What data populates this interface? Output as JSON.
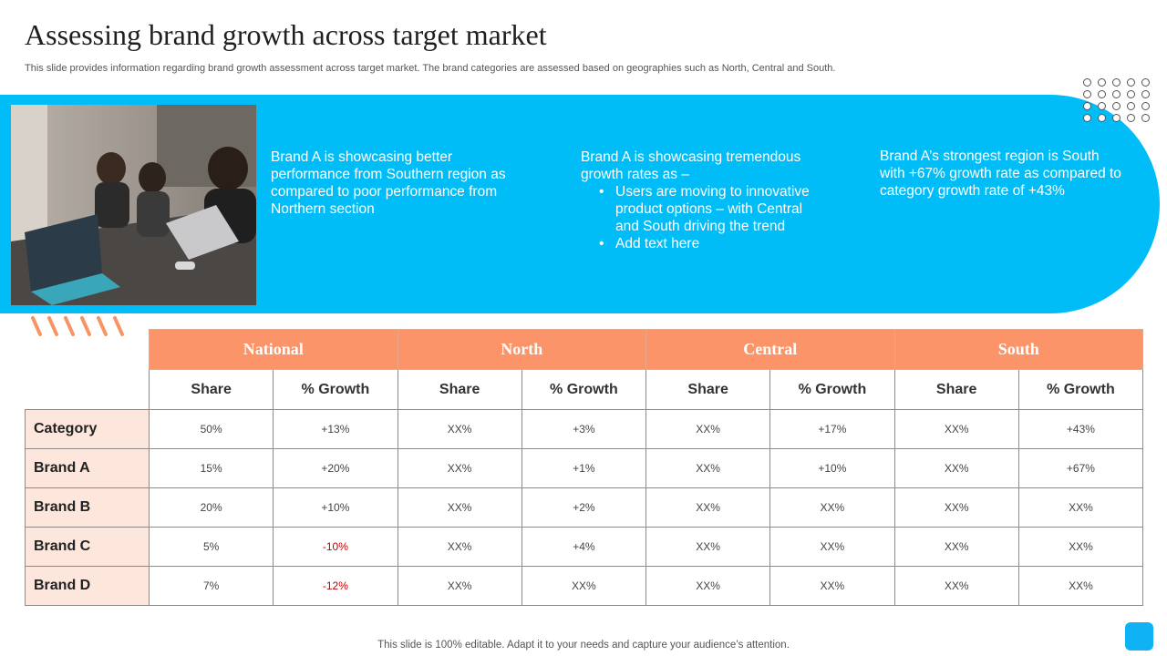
{
  "slide": {
    "title": "Assessing brand growth across target market",
    "subtitle": "This slide provides information regarding brand growth assessment across target market. The brand categories are assessed based on geographies such as North, Central and South.",
    "footer": "This slide is 100% editable. Adapt it to your needs and capture your audience’s attention."
  },
  "banner": {
    "blurb1": "Brand A is showcasing better performance from Southern region as compared to poor performance from Northern section",
    "blurb2_intro": "Brand A is showcasing tremendous growth rates as –",
    "blurb2_bullets": [
      "Users are moving to innovative product options – with Central and South driving the trend",
      "Add text here"
    ],
    "blurb3": "Brand A’s strongest region is South with +67% growth rate as compared to category growth rate of +43%"
  },
  "table": {
    "regions": [
      "National",
      "North",
      "Central",
      "South"
    ],
    "sub_headers": [
      "Share",
      "% Growth"
    ],
    "rows": [
      {
        "label": "Category",
        "cells": [
          "50%",
          "+13%",
          "XX%",
          "+3%",
          "XX%",
          "+17%",
          "XX%",
          "+43%"
        ]
      },
      {
        "label": "Brand A",
        "cells": [
          "15%",
          "+20%",
          "XX%",
          "+1%",
          "XX%",
          "+10%",
          "XX%",
          "+67%"
        ]
      },
      {
        "label": "Brand B",
        "cells": [
          "20%",
          "+10%",
          "XX%",
          "+2%",
          "XX%",
          "XX%",
          "XX%",
          "XX%"
        ]
      },
      {
        "label": "Brand C",
        "cells": [
          "5%",
          "-10%",
          "XX%",
          "+4%",
          "XX%",
          "XX%",
          "XX%",
          "XX%"
        ]
      },
      {
        "label": "Brand D",
        "cells": [
          "7%",
          "-12%",
          "XX%",
          "XX%",
          "XX%",
          "XX%",
          "XX%",
          "XX%"
        ]
      }
    ]
  },
  "colors": {
    "accent_blue": "#00bdf7",
    "accent_orange": "#fb9469",
    "row_label_bg": "#fde6dc",
    "negative": "#c00000"
  },
  "icons": {
    "photo": "meeting-photo",
    "dots": "dot-grid-decoration",
    "stripes": "stripe-decoration",
    "corner": "corner-square"
  }
}
